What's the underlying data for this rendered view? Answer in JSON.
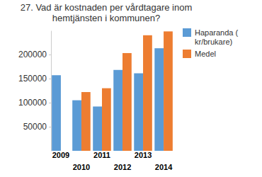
{
  "chart_data": {
    "type": "bar",
    "title": "27. Vad är kostnaden per vårdtagare inom hemtjänsten i kommunen?",
    "categories": [
      "2009",
      "2010",
      "2011",
      "2012",
      "2013",
      "2014"
    ],
    "series": [
      {
        "name": "Haparanda ( kr/brukare)",
        "color": "#5b9bd5",
        "values": [
          157000,
          105000,
          92000,
          168000,
          161000,
          213000
        ]
      },
      {
        "name": "Medel",
        "color": "#ed7d31",
        "values": [
          null,
          122000,
          130000,
          203000,
          240000,
          248000
        ]
      }
    ],
    "ylim": [
      0,
      250000
    ],
    "yticks": [
      50000,
      100000,
      150000,
      200000
    ],
    "grid": false,
    "legend": "right"
  }
}
